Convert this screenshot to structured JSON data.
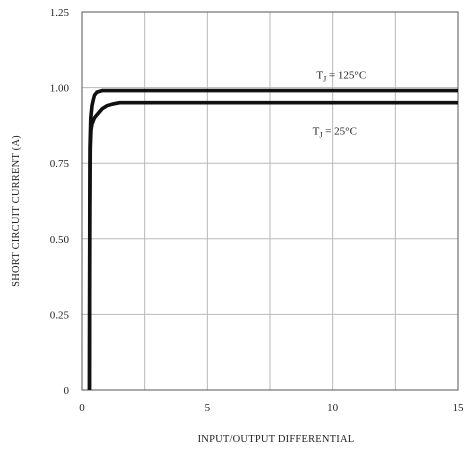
{
  "chart_data": {
    "type": "line",
    "title": "",
    "xlabel": "INPUT/OUTPUT DIFFERENTIAL",
    "ylabel": "SHORT CIRCUIT CURRENT (A)",
    "xlim": [
      0,
      15
    ],
    "ylim": [
      0,
      1.25
    ],
    "x_ticks": [
      0,
      2.5,
      5,
      7.5,
      10,
      12.5,
      15
    ],
    "x_tick_labels": [
      "0",
      "",
      "5",
      "",
      "10",
      "",
      "15"
    ],
    "y_ticks": [
      0,
      0.25,
      0.5,
      0.75,
      1.0,
      1.25
    ],
    "y_tick_labels": [
      "0",
      "0.25",
      "0.50",
      "0.75",
      "1.00",
      "1.25"
    ],
    "grid": true,
    "series": [
      {
        "label_main": "T",
        "label_sub": "J",
        "label_rest": " = 125°C",
        "annotation_at": [
          9.35,
          1.03
        ],
        "color": "#111111",
        "x": [
          0.3,
          0.32,
          0.35,
          0.4,
          0.45,
          0.5,
          0.6,
          0.8,
          1.0,
          1.5,
          2.0,
          5.0,
          10.0,
          15.0
        ],
        "y": [
          0.0,
          0.8,
          0.9,
          0.94,
          0.96,
          0.975,
          0.985,
          0.99,
          0.99,
          0.99,
          0.99,
          0.99,
          0.99,
          0.99
        ]
      },
      {
        "label_main": "T",
        "label_sub": "J",
        "label_rest": " = 25°C",
        "annotation_at": [
          9.2,
          0.845
        ],
        "color": "#111111",
        "x": [
          0.3,
          0.31,
          0.33,
          0.36,
          0.4,
          0.5,
          0.6,
          0.8,
          1.0,
          1.2,
          1.5,
          2.0,
          5.0,
          10.0,
          15.0
        ],
        "y": [
          0.0,
          0.6,
          0.8,
          0.86,
          0.88,
          0.9,
          0.91,
          0.93,
          0.94,
          0.945,
          0.95,
          0.95,
          0.95,
          0.95,
          0.95
        ]
      }
    ]
  }
}
